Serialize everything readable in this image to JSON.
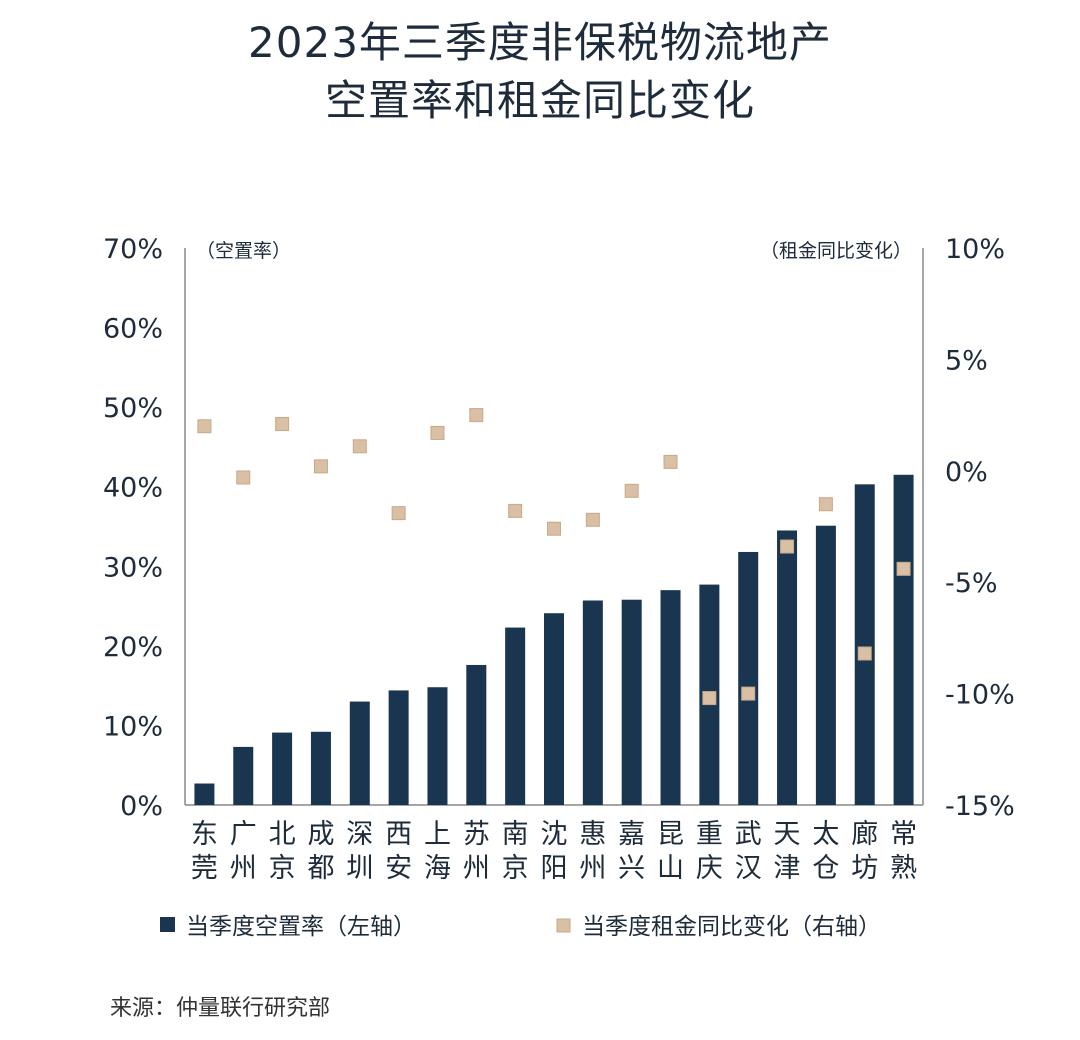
{
  "title": {
    "line1": "2023年三季度非保税物流地产",
    "line2": "空置率和租金同比变化"
  },
  "source": "来源：仲量联行研究部",
  "colors": {
    "bar": "#1a3550",
    "marker": "#d9bfa3",
    "marker_edge": "#c8a98a",
    "axis": "#888888",
    "text": "#1d2b3a"
  },
  "chart_data": {
    "type": "bar",
    "categories": [
      [
        "东",
        "莞"
      ],
      [
        "广",
        "州"
      ],
      [
        "北",
        "京"
      ],
      [
        "成",
        "都"
      ],
      [
        "深",
        "圳"
      ],
      [
        "西",
        "安"
      ],
      [
        "上",
        "海"
      ],
      [
        "苏",
        "州"
      ],
      [
        "南",
        "京"
      ],
      [
        "沈",
        "阳"
      ],
      [
        "惠",
        "州"
      ],
      [
        "嘉",
        "兴"
      ],
      [
        "昆",
        "山"
      ],
      [
        "重",
        "庆"
      ],
      [
        "武",
        "汉"
      ],
      [
        "天",
        "津"
      ],
      [
        "太",
        "仓"
      ],
      [
        "廊",
        "坊"
      ],
      [
        "常",
        "熟"
      ]
    ],
    "series": [
      {
        "name": "当季度空置率（左轴）",
        "axis": "left",
        "kind": "bar",
        "values": [
          2.7,
          7.3,
          9.1,
          9.2,
          13.0,
          14.4,
          14.8,
          17.6,
          22.3,
          24.1,
          25.7,
          25.8,
          27.0,
          27.7,
          31.8,
          34.5,
          35.1,
          40.3,
          41.5
        ]
      },
      {
        "name": "当季度租金同比变化（右轴）",
        "axis": "right",
        "kind": "scatter",
        "values": [
          2.0,
          -0.3,
          2.1,
          0.2,
          1.1,
          -1.9,
          1.7,
          2.5,
          -1.8,
          -2.6,
          -2.2,
          -0.9,
          0.4,
          -10.2,
          -10.0,
          -3.4,
          -1.5,
          -8.2,
          -4.4
        ]
      }
    ],
    "left_axis": {
      "label": "（空置率）",
      "ylim": [
        0,
        70
      ],
      "ticks": [
        0,
        10,
        20,
        30,
        40,
        50,
        60,
        70
      ],
      "tick_labels": [
        "0%",
        "10%",
        "20%",
        "30%",
        "40%",
        "50%",
        "60%",
        "70%"
      ]
    },
    "right_axis": {
      "label": "（租金同比变化）",
      "ylim": [
        -15,
        10
      ],
      "ticks": [
        -15,
        -10,
        -5,
        0,
        5,
        10
      ],
      "tick_labels": [
        "-15%",
        "-10%",
        "-5%",
        "0%",
        "5%",
        "10%"
      ]
    },
    "legend_position": "bottom",
    "grid": false
  }
}
